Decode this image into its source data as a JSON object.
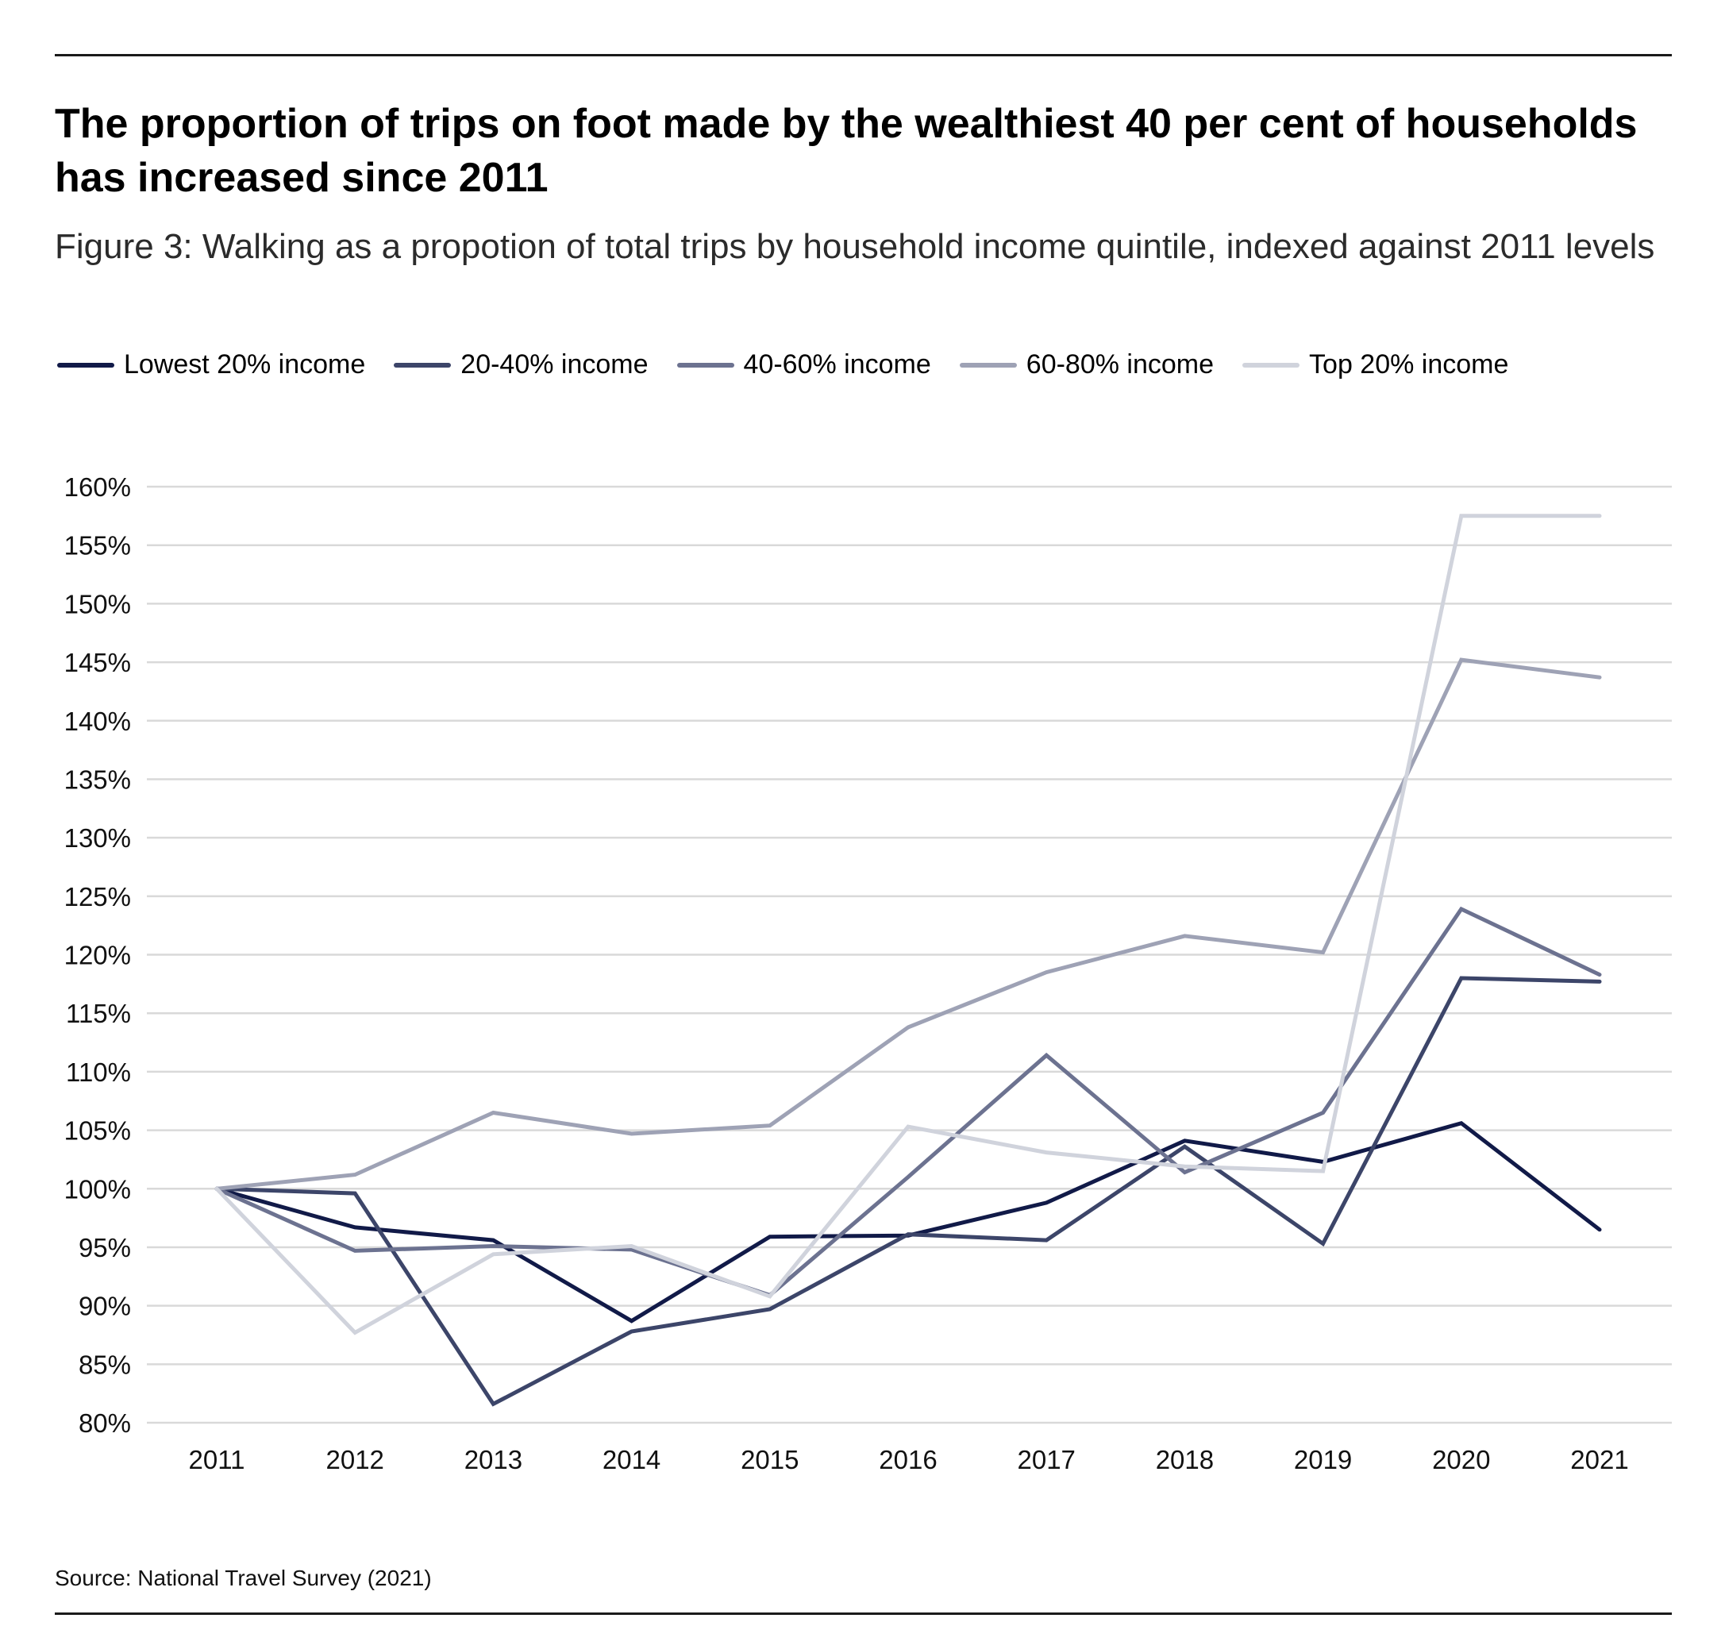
{
  "header": {
    "title": "The proportion of trips on foot made by the wealthiest 40 per cent of households has increased since 2011",
    "subtitle": "Figure 3: Walking as a propotion of total trips by household income quintile, indexed against 2011 levels"
  },
  "footer": {
    "source": "Source: National Travel Survey (2021)"
  },
  "chart_data": {
    "type": "line",
    "title": "The proportion of trips on foot made by the wealthiest 40 per cent of households has increased since 2011",
    "subtitle": "Figure 3: Walking as a propotion of total trips by household income quintile, indexed against 2011 levels",
    "xlabel": "",
    "ylabel": "",
    "x": [
      "2011",
      "2012",
      "2013",
      "2014",
      "2015",
      "2016",
      "2017",
      "2018",
      "2019",
      "2020",
      "2021"
    ],
    "ylim": [
      80,
      160
    ],
    "yticks": [
      80,
      85,
      90,
      95,
      100,
      105,
      110,
      115,
      120,
      125,
      130,
      135,
      140,
      145,
      150,
      155,
      160
    ],
    "ytick_labels": [
      "80%",
      "85%",
      "90%",
      "95%",
      "100%",
      "105%",
      "110%",
      "115%",
      "120%",
      "125%",
      "130%",
      "135%",
      "140%",
      "145%",
      "150%",
      "155%",
      "160%"
    ],
    "grid": true,
    "legend_position": "top-left",
    "series": [
      {
        "name": "Lowest 20% income",
        "color": "#111a48",
        "values": [
          100,
          96.7,
          95.6,
          88.7,
          95.9,
          96.0,
          98.8,
          104.1,
          102.3,
          105.6,
          96.5
        ]
      },
      {
        "name": "20-40% income",
        "color": "#3c4569",
        "values": [
          100,
          99.6,
          81.6,
          87.8,
          89.7,
          96.1,
          95.6,
          103.6,
          95.3,
          118.0,
          117.7
        ]
      },
      {
        "name": "40-60% income",
        "color": "#6c7290",
        "values": [
          100,
          94.7,
          95.1,
          94.8,
          90.9,
          101.0,
          111.4,
          101.4,
          106.5,
          123.9,
          118.3
        ]
      },
      {
        "name": "60-80% income",
        "color": "#9ea2b5",
        "values": [
          100,
          101.2,
          106.5,
          104.7,
          105.4,
          113.8,
          118.5,
          121.6,
          120.2,
          145.2,
          143.7
        ]
      },
      {
        "name": "Top 20% income",
        "color": "#d0d3dc",
        "values": [
          100,
          87.7,
          94.4,
          95.1,
          90.8,
          105.3,
          103.1,
          101.9,
          101.5,
          157.5,
          157.5
        ]
      }
    ]
  }
}
